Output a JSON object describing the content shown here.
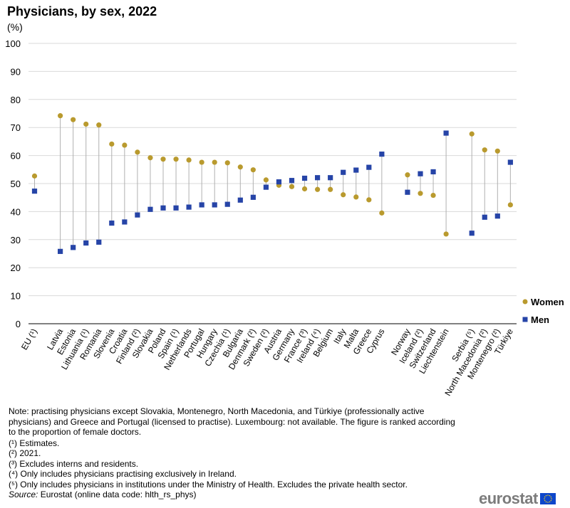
{
  "header": {
    "title": "Physicians, by sex, 2022",
    "unit": "(%)"
  },
  "chart_data": {
    "type": "dot-plot",
    "title": "Physicians, by sex, 2022",
    "ylabel": "(%)",
    "ylim": [
      0,
      100
    ],
    "yticks": [
      0,
      10,
      20,
      30,
      40,
      50,
      60,
      70,
      80,
      90,
      100
    ],
    "grid": true,
    "legend_position": "right",
    "groups": [
      {
        "categories": [
          "EU (¹)"
        ],
        "women": [
          52.7
        ],
        "men": [
          47.3
        ]
      },
      {
        "categories": [
          "Latvia",
          "Estonia",
          "Lithuania (¹)",
          "Romania",
          "Slovenia",
          "Croatia",
          "Finland (²)",
          "Slovakia",
          "Poland",
          "Spain (¹)",
          "Netherlands",
          "Portugal",
          "Hungary",
          "Czechia (¹)",
          "Bulgaria",
          "Denmark (²)",
          "Sweden (²)",
          "Austria",
          "Germany",
          "France (³)",
          "Ireland (⁴)",
          "Belgium",
          "Italy",
          "Malta",
          "Greece",
          "Cyprus"
        ],
        "women": [
          74.2,
          72.8,
          71.2,
          70.9,
          64.1,
          63.7,
          61.2,
          59.2,
          58.7,
          58.7,
          58.4,
          57.6,
          57.6,
          57.4,
          55.9,
          54.9,
          51.3,
          49.4,
          48.9,
          48.1,
          47.9,
          47.9,
          46.0,
          45.2,
          44.2,
          39.5
        ],
        "men": [
          25.8,
          27.2,
          28.8,
          29.1,
          35.9,
          36.3,
          38.8,
          40.8,
          41.3,
          41.3,
          41.6,
          42.4,
          42.4,
          42.6,
          44.1,
          45.1,
          48.7,
          50.6,
          51.1,
          51.9,
          52.1,
          52.1,
          54.0,
          54.8,
          55.8,
          60.5
        ]
      },
      {
        "categories": [
          "Norway",
          "Iceland (²)",
          "Switzerland",
          "Liechtenstein"
        ],
        "women": [
          53.1,
          46.5,
          45.8,
          32.0
        ],
        "men": [
          46.9,
          53.5,
          54.2,
          68.0
        ]
      },
      {
        "categories": [
          "Serbia (⁵)",
          "North Macedonia (²)",
          "Montenegro (²)",
          "Türkiye"
        ],
        "women": [
          67.7,
          62.0,
          61.6,
          42.4
        ],
        "men": [
          32.3,
          38.0,
          38.4,
          57.6
        ]
      }
    ],
    "series": [
      {
        "name": "Women",
        "color": "#b99a2e",
        "marker": "circle"
      },
      {
        "name": "Men",
        "color": "#2644a7",
        "marker": "square"
      }
    ]
  },
  "notes": {
    "main": "Note: practising physicians except Slovakia, Montenegro, North Macedonia, and Türkiye (professionally active physicians) and Greece and Portugal (licensed to practise). Luxembourg: not available. The figure is ranked according to the proportion of female doctors.",
    "footnotes": [
      "(¹) Estimates.",
      "(²) 2021.",
      "(³) Excludes interns and residents.",
      "(⁴) Only includes physicians practising exclusively  in Ireland.",
      "(⁵) Only includes physicians in institutions under the Ministry of Health. Excludes the private health sector."
    ],
    "source_label": "Source:",
    "source_text": " Eurostat (online data code: hlth_rs_phys)"
  },
  "branding": {
    "logo_text": "eurostat",
    "flag_color": "#0e47cb",
    "star_color": "#ffd617"
  }
}
